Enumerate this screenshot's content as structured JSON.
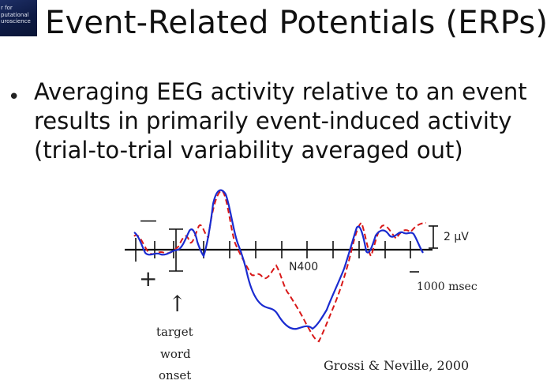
{
  "logo": {
    "lines": [
      "r for",
      "putational",
      "uroscience"
    ]
  },
  "slide": {
    "title": "Event-Related Potentials (ERPs)",
    "bullet_lines": [
      "Averaging EEG activity relative to an event",
      "results in primarily event-induced activity",
      "(trial-to-trial variability averaged out)"
    ]
  },
  "figure": {
    "minus_sign": "—",
    "plus_sign": "+",
    "component_label": "N400",
    "amplitude_scale": "2 µV",
    "time_scale": "1000 msec",
    "arrow_glyph": "↑",
    "onset_label_lines": [
      "target",
      "word",
      "onset"
    ],
    "citation": "Grossi & Neville, 2000",
    "series": [
      {
        "style": "solid",
        "color": "#1a2bd0"
      },
      {
        "style": "dashed",
        "color": "#d81818"
      }
    ]
  }
}
